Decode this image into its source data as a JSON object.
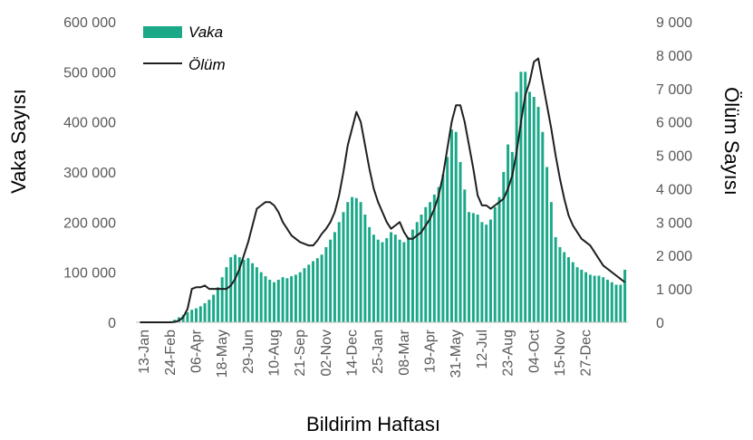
{
  "chart_data": {
    "type": "bar",
    "xlabel": "Bildirim Haftası",
    "ylabel": "Vaka Sayısı",
    "y2label": "Ölüm Sayısı",
    "ylim": [
      0,
      600000
    ],
    "y2lim": [
      0,
      9000
    ],
    "yticks": [
      "0",
      "100 000",
      "200 000",
      "300 000",
      "400 000",
      "500 000",
      "600 000"
    ],
    "y2ticks": [
      "0",
      "1 000",
      "2 000",
      "3 000",
      "4 000",
      "5 000",
      "6 000",
      "7 000",
      "8 000",
      "9 000"
    ],
    "xticks": [
      {
        "label": "13-Jan",
        "index": 1
      },
      {
        "label": "24-Feb",
        "index": 7
      },
      {
        "label": "06-Apr",
        "index": 13
      },
      {
        "label": "18-May",
        "index": 19
      },
      {
        "label": "29-Jun",
        "index": 25
      },
      {
        "label": "10-Aug",
        "index": 31
      },
      {
        "label": "21-Sep",
        "index": 37
      },
      {
        "label": "02-Nov",
        "index": 43
      },
      {
        "label": "14-Dec",
        "index": 49
      },
      {
        "label": "25-Jan",
        "index": 55
      },
      {
        "label": "08-Mar",
        "index": 61
      },
      {
        "label": "19-Apr",
        "index": 67
      },
      {
        "label": "31-May",
        "index": 73
      },
      {
        "label": "12-Jul",
        "index": 79
      },
      {
        "label": "23-Aug",
        "index": 85
      },
      {
        "label": "04-Oct",
        "index": 91
      },
      {
        "label": "15-Nov",
        "index": 97
      },
      {
        "label": "27-Dec",
        "index": 103
      }
    ],
    "legend_position": "top-left",
    "series": [
      {
        "name": "Vaka",
        "type": "bar",
        "axis": "left",
        "color": "#1aa888",
        "values": [
          0,
          0,
          0,
          0,
          0,
          0,
          0,
          2000,
          5000,
          10000,
          15000,
          20000,
          25000,
          28000,
          32000,
          38000,
          45000,
          55000,
          70000,
          90000,
          110000,
          130000,
          135000,
          130000,
          125000,
          128000,
          118000,
          110000,
          100000,
          92000,
          85000,
          80000,
          85000,
          90000,
          88000,
          92000,
          95000,
          100000,
          108000,
          115000,
          122000,
          128000,
          135000,
          150000,
          165000,
          180000,
          200000,
          220000,
          240000,
          250000,
          248000,
          240000,
          215000,
          190000,
          175000,
          165000,
          160000,
          168000,
          180000,
          175000,
          165000,
          160000,
          170000,
          185000,
          200000,
          215000,
          230000,
          240000,
          255000,
          270000,
          295000,
          330000,
          385000,
          380000,
          320000,
          265000,
          220000,
          218000,
          215000,
          200000,
          195000,
          205000,
          230000,
          250000,
          300000,
          355000,
          340000,
          460000,
          500000,
          500000,
          460000,
          450000,
          430000,
          380000,
          310000,
          240000,
          170000,
          150000,
          140000,
          130000,
          120000,
          110000,
          105000,
          100000,
          95000,
          93000,
          93000,
          90000,
          85000,
          80000,
          75000,
          75000,
          105000
        ]
      },
      {
        "name": "Ölüm",
        "type": "line",
        "axis": "right",
        "color": "#1f1f1f",
        "values": [
          0,
          0,
          0,
          0,
          0,
          0,
          0,
          0,
          10,
          50,
          150,
          400,
          1000,
          1050,
          1050,
          1100,
          1000,
          1000,
          1000,
          1000,
          1000,
          1100,
          1300,
          1600,
          2000,
          2400,
          2900,
          3400,
          3500,
          3600,
          3600,
          3500,
          3300,
          3000,
          2800,
          2600,
          2500,
          2400,
          2350,
          2300,
          2300,
          2450,
          2650,
          2800,
          3000,
          3300,
          3800,
          4500,
          5300,
          5800,
          6300,
          6000,
          5300,
          4600,
          4000,
          3600,
          3300,
          3000,
          2800,
          2900,
          3000,
          2700,
          2500,
          2500,
          2600,
          2700,
          2900,
          3100,
          3400,
          3800,
          4400,
          5200,
          6000,
          6500,
          6500,
          6000,
          5300,
          4600,
          3800,
          3500,
          3500,
          3400,
          3500,
          3600,
          3700,
          4000,
          4400,
          5100,
          6000,
          6800,
          7200,
          7800,
          7900,
          7200,
          6500,
          5800,
          5000,
          4300,
          3700,
          3200,
          2900,
          2700,
          2500,
          2400,
          2300,
          2100,
          1900,
          1700,
          1600,
          1500,
          1400,
          1300,
          1200
        ]
      }
    ]
  }
}
